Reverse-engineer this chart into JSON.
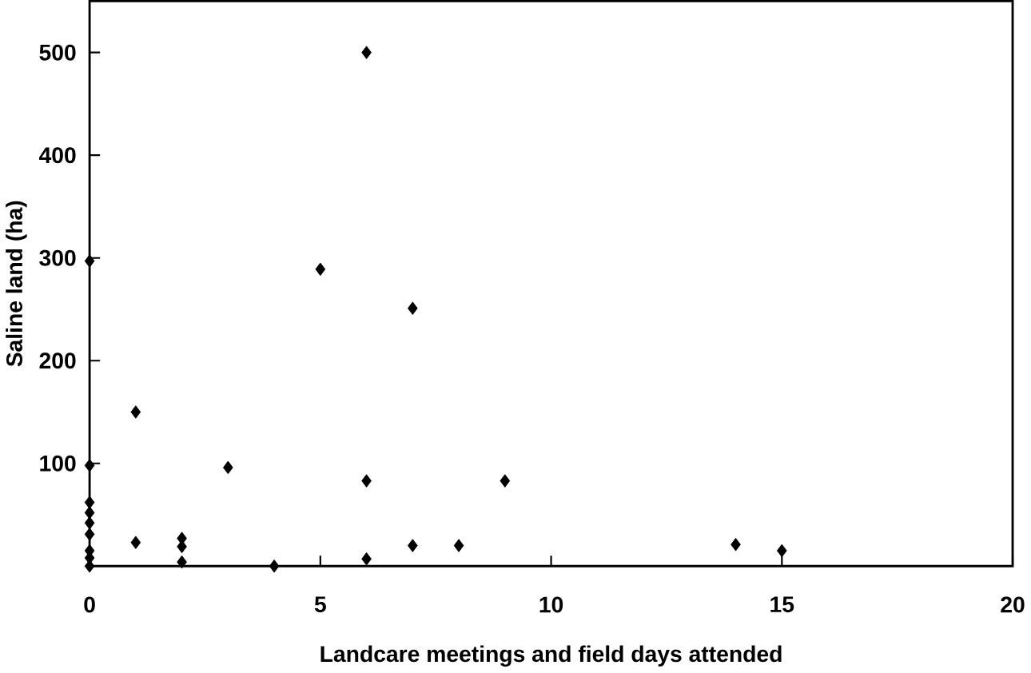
{
  "chart_data": {
    "type": "scatter",
    "xlabel": "Landcare meetings and field days attended",
    "ylabel": "Saline land (ha)",
    "x": [
      0,
      0,
      0,
      0,
      0,
      0,
      0,
      0,
      0,
      1,
      1,
      2,
      2,
      2,
      3,
      4,
      5,
      6,
      6,
      6,
      7,
      7,
      8,
      9,
      14,
      15
    ],
    "values": [
      297,
      98,
      62,
      52,
      42,
      31,
      15,
      8,
      0,
      150,
      23,
      27,
      19,
      4,
      96,
      0,
      289,
      500,
      83,
      7,
      251,
      20,
      20,
      83,
      21,
      15
    ],
    "color": "#000000",
    "marker": "diamond",
    "grid": false,
    "xlim": [
      0,
      20
    ],
    "xticks": [
      0,
      5,
      10,
      15,
      20
    ],
    "ylim": [
      0,
      550
    ],
    "yticks": [
      100,
      200,
      300,
      400,
      500
    ]
  }
}
